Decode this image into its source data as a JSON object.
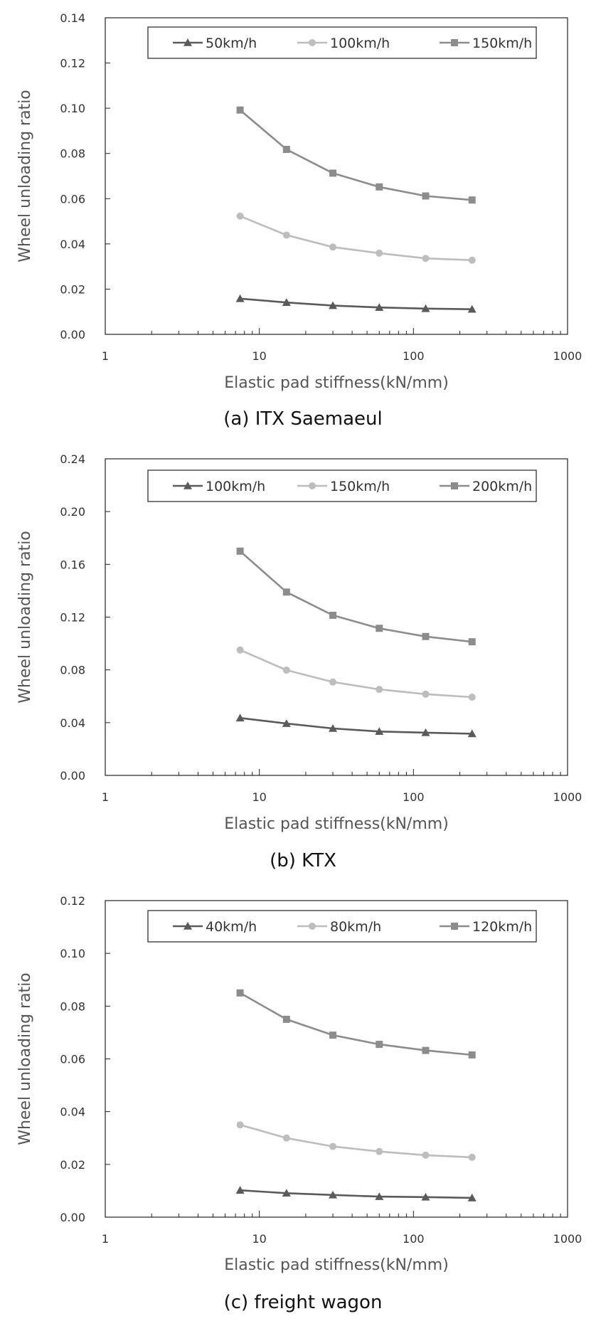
{
  "chart_data": [
    {
      "type": "line",
      "caption": "(a) ITX Saemaeul",
      "xlabel": "Elastic pad stiffness(kN/mm)",
      "ylabel": "Wheel unloading ratio",
      "xscale": "log",
      "xlim": [
        1,
        1000
      ],
      "ylim": [
        0,
        0.14
      ],
      "x_tick_labels": [
        "1",
        "10",
        "100",
        "1000"
      ],
      "y_tick_labels": [
        "0.00",
        "0.02",
        "0.04",
        "0.06",
        "0.08",
        "0.10",
        "0.12",
        "0.14"
      ],
      "legend_position": "top",
      "x": [
        7.5,
        15,
        30,
        60,
        120,
        240
      ],
      "series": [
        {
          "name": "50km/h",
          "marker": "triangle",
          "color": "#5a5a5a",
          "values": [
            0.0158,
            0.0141,
            0.0127,
            0.0119,
            0.0114,
            0.0111
          ]
        },
        {
          "name": "100km/h",
          "marker": "circle",
          "color": "#bdbdbd",
          "values": [
            0.0523,
            0.0439,
            0.0386,
            0.0359,
            0.0336,
            0.0328
          ]
        },
        {
          "name": "150km/h",
          "marker": "square",
          "color": "#8c8c8c",
          "values": [
            0.0992,
            0.0818,
            0.0713,
            0.0652,
            0.0612,
            0.0594
          ]
        }
      ]
    },
    {
      "type": "line",
      "caption": "(b) KTX",
      "xlabel": "Elastic pad stiffness(kN/mm)",
      "ylabel": "Wheel unloading ratio",
      "xscale": "log",
      "xlim": [
        1,
        1000
      ],
      "ylim": [
        0,
        0.24
      ],
      "x_tick_labels": [
        "1",
        "10",
        "100",
        "1000"
      ],
      "y_tick_labels": [
        "0.00",
        "0.04",
        "0.08",
        "0.12",
        "0.16",
        "0.20",
        "0.24"
      ],
      "legend_position": "top",
      "x": [
        7.5,
        15,
        30,
        60,
        120,
        240
      ],
      "series": [
        {
          "name": "100km/h",
          "marker": "triangle",
          "color": "#5a5a5a",
          "values": [
            0.0435,
            0.0393,
            0.0356,
            0.0333,
            0.0324,
            0.0316
          ]
        },
        {
          "name": "150km/h",
          "marker": "circle",
          "color": "#bdbdbd",
          "values": [
            0.0951,
            0.0798,
            0.0708,
            0.0652,
            0.0616,
            0.0593
          ]
        },
        {
          "name": "200km/h",
          "marker": "square",
          "color": "#8c8c8c",
          "values": [
            0.17,
            0.139,
            0.1214,
            0.1115,
            0.1053,
            0.1013
          ]
        }
      ]
    },
    {
      "type": "line",
      "caption": "(c) freight wagon",
      "xlabel": "Elastic pad stiffness(kN/mm)",
      "ylabel": "Wheel unloading ratio",
      "xscale": "log",
      "xlim": [
        1,
        1000
      ],
      "ylim": [
        0,
        0.12
      ],
      "x_tick_labels": [
        "1",
        "10",
        "100",
        "1000"
      ],
      "y_tick_labels": [
        "0.00",
        "0.02",
        "0.04",
        "0.06",
        "0.08",
        "0.10",
        "0.12"
      ],
      "legend_position": "top",
      "x": [
        7.5,
        15,
        30,
        60,
        120,
        240
      ],
      "series": [
        {
          "name": "40km/h",
          "marker": "triangle",
          "color": "#5a5a5a",
          "values": [
            0.0102,
            0.0091,
            0.0084,
            0.0078,
            0.0076,
            0.0073
          ]
        },
        {
          "name": "80km/h",
          "marker": "circle",
          "color": "#bdbdbd",
          "values": [
            0.035,
            0.03,
            0.0268,
            0.0249,
            0.0235,
            0.0227
          ]
        },
        {
          "name": "120km/h",
          "marker": "square",
          "color": "#8c8c8c",
          "values": [
            0.085,
            0.075,
            0.069,
            0.0655,
            0.0632,
            0.0615
          ]
        }
      ]
    }
  ]
}
